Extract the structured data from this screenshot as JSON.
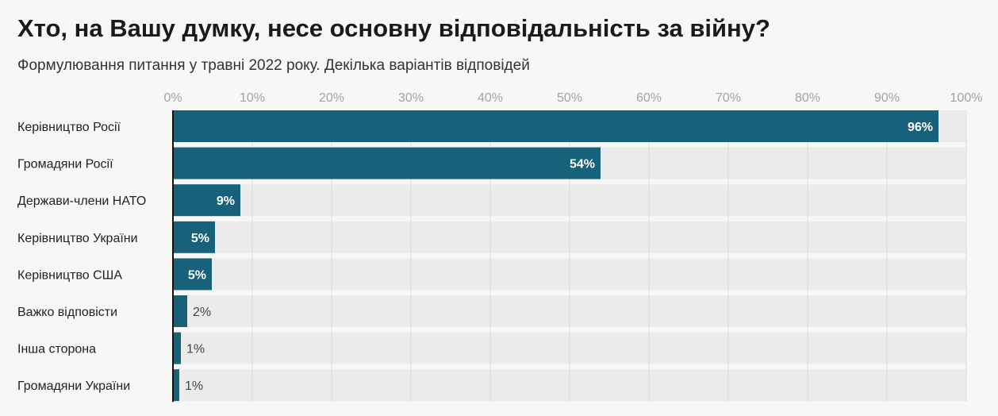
{
  "chart_data": {
    "type": "bar",
    "orientation": "horizontal",
    "title": "Хто, на Вашу думку, несе основну відповідальність за війну?",
    "subtitle": "Формулювання питання у травні 2022 року. Декілька варіантів відповідей",
    "categories": [
      "Керівництво Росії",
      "Громадяни Росії",
      "Держави-члени НАТО",
      "Керівництво України",
      "Керівництво США",
      "Важко відповісти",
      "Інша сторона",
      "Громадяни України"
    ],
    "values": [
      96.5,
      53.9,
      8.5,
      5.3,
      4.9,
      1.8,
      1.0,
      0.8
    ],
    "labels": [
      "96%",
      "54%",
      "9%",
      "5%",
      "5%",
      "2%",
      "1%",
      "1%"
    ],
    "xlim": [
      0,
      100
    ],
    "x_ticks": [
      "0%",
      "10%",
      "20%",
      "30%",
      "40%",
      "50%",
      "60%",
      "70%",
      "80%",
      "90%",
      "100%"
    ],
    "grid": true,
    "colors": {
      "bar": "#17617a",
      "track": "#ebebec",
      "grid": "#dcdcdc"
    }
  }
}
